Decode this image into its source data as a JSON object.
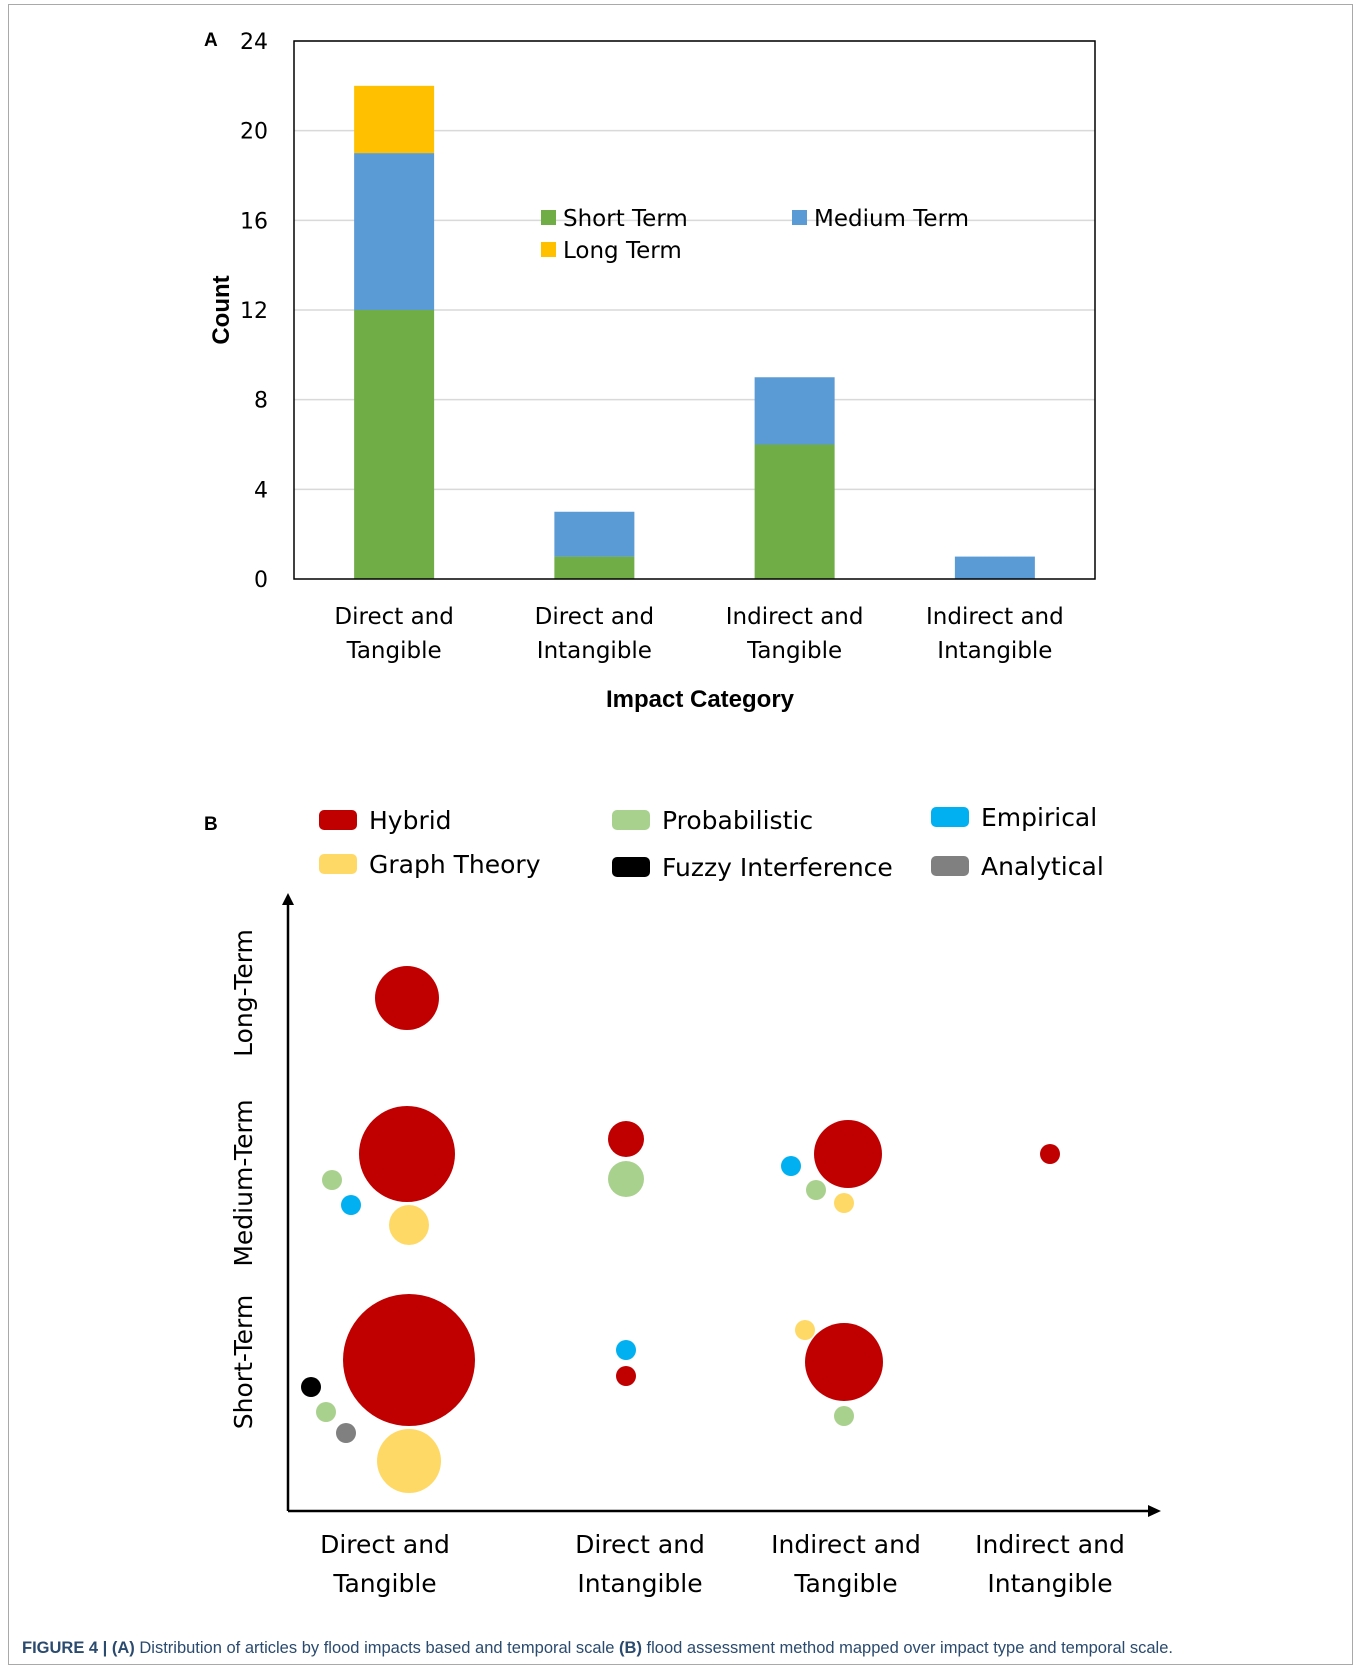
{
  "chart_data": [
    {
      "panel": "A",
      "type": "bar",
      "stacked": true,
      "categories": [
        [
          "Direct and",
          "Tangible"
        ],
        [
          "Direct and",
          "Intangible"
        ],
        [
          "Indirect and",
          "Tangible"
        ],
        [
          "Indirect and",
          "Intangible"
        ]
      ],
      "series": [
        {
          "name": "Short Term",
          "color": "#70ad47",
          "values": [
            12,
            1,
            6,
            0
          ]
        },
        {
          "name": "Medium Term",
          "color": "#5b9bd5",
          "values": [
            7,
            2,
            3,
            1
          ]
        },
        {
          "name": "Long Term",
          "color": "#ffc000",
          "values": [
            3,
            0,
            0,
            0
          ]
        }
      ],
      "xlabel": "Impact Category",
      "ylabel": "Count",
      "ylim": [
        0,
        24
      ],
      "yticks": [
        "0",
        "4",
        "8",
        "12",
        "16",
        "20",
        "24"
      ],
      "grid": true,
      "legend_position": "inside-top"
    },
    {
      "panel": "B",
      "type": "scatter",
      "bubble": true,
      "x_categories": [
        [
          "Direct and",
          "Tangible"
        ],
        [
          "Direct and",
          "Intangible"
        ],
        [
          "Indirect and",
          "Tangible"
        ],
        [
          "Indirect and",
          "Intangible"
        ]
      ],
      "y_categories": [
        "Short-Term",
        "Medium-Term",
        "Long-Term"
      ],
      "legend": [
        {
          "name": "Hybrid",
          "color": "#c00000"
        },
        {
          "name": "Probabilistic",
          "color": "#a9d18e"
        },
        {
          "name": "Empirical",
          "color": "#00b0f0"
        },
        {
          "name": "Graph Theory",
          "color": "#ffd966"
        },
        {
          "name": "Fuzzy Interference",
          "color": "#000000"
        },
        {
          "name": "Analytical",
          "color": "#808080"
        }
      ],
      "bubbles": [
        {
          "x": "Direct and Tangible",
          "y": "Long-Term",
          "method": "Hybrid",
          "size": 3
        },
        {
          "x": "Direct and Tangible",
          "y": "Medium-Term",
          "method": "Hybrid",
          "size": 7
        },
        {
          "x": "Direct and Tangible",
          "y": "Medium-Term",
          "method": "Probabilistic",
          "size": 0.3
        },
        {
          "x": "Direct and Tangible",
          "y": "Medium-Term",
          "method": "Empirical",
          "size": 0.3
        },
        {
          "x": "Direct and Tangible",
          "y": "Medium-Term",
          "method": "Graph Theory",
          "size": 1.2
        },
        {
          "x": "Direct and Tangible",
          "y": "Short-Term",
          "method": "Hybrid",
          "size": 12
        },
        {
          "x": "Direct and Tangible",
          "y": "Short-Term",
          "method": "Fuzzy Interference",
          "size": 0.3
        },
        {
          "x": "Direct and Tangible",
          "y": "Short-Term",
          "method": "Probabilistic",
          "size": 0.3
        },
        {
          "x": "Direct and Tangible",
          "y": "Short-Term",
          "method": "Analytical",
          "size": 0.3
        },
        {
          "x": "Direct and Tangible",
          "y": "Short-Term",
          "method": "Graph Theory",
          "size": 3
        },
        {
          "x": "Direct and Intangible",
          "y": "Medium-Term",
          "method": "Hybrid",
          "size": 1
        },
        {
          "x": "Direct and Intangible",
          "y": "Medium-Term",
          "method": "Probabilistic",
          "size": 1
        },
        {
          "x": "Direct and Intangible",
          "y": "Short-Term",
          "method": "Empirical",
          "size": 0.3
        },
        {
          "x": "Direct and Intangible",
          "y": "Short-Term",
          "method": "Hybrid",
          "size": 0.3
        },
        {
          "x": "Indirect and Tangible",
          "y": "Medium-Term",
          "method": "Empirical",
          "size": 0.3
        },
        {
          "x": "Indirect and Tangible",
          "y": "Medium-Term",
          "method": "Hybrid",
          "size": 3
        },
        {
          "x": "Indirect and Tangible",
          "y": "Medium-Term",
          "method": "Probabilistic",
          "size": 0.3
        },
        {
          "x": "Indirect and Tangible",
          "y": "Medium-Term",
          "method": "Graph Theory",
          "size": 0.3
        },
        {
          "x": "Indirect and Tangible",
          "y": "Short-Term",
          "method": "Graph Theory",
          "size": 0.3
        },
        {
          "x": "Indirect and Tangible",
          "y": "Short-Term",
          "method": "Hybrid",
          "size": 4
        },
        {
          "x": "Indirect and Tangible",
          "y": "Short-Term",
          "method": "Probabilistic",
          "size": 0.3
        },
        {
          "x": "Indirect and Intangible",
          "y": "Medium-Term",
          "method": "Hybrid",
          "size": 0.3
        }
      ]
    }
  ],
  "panel_labels": {
    "a": "A",
    "b": "B"
  },
  "caption": {
    "figure": "FIGURE 4 | ",
    "a": "(A)",
    "text1": " Distribution of articles by flood impacts based and temporal scale ",
    "b": "(B)",
    "text2": " flood assessment method mapped over impact type and temporal scale."
  }
}
